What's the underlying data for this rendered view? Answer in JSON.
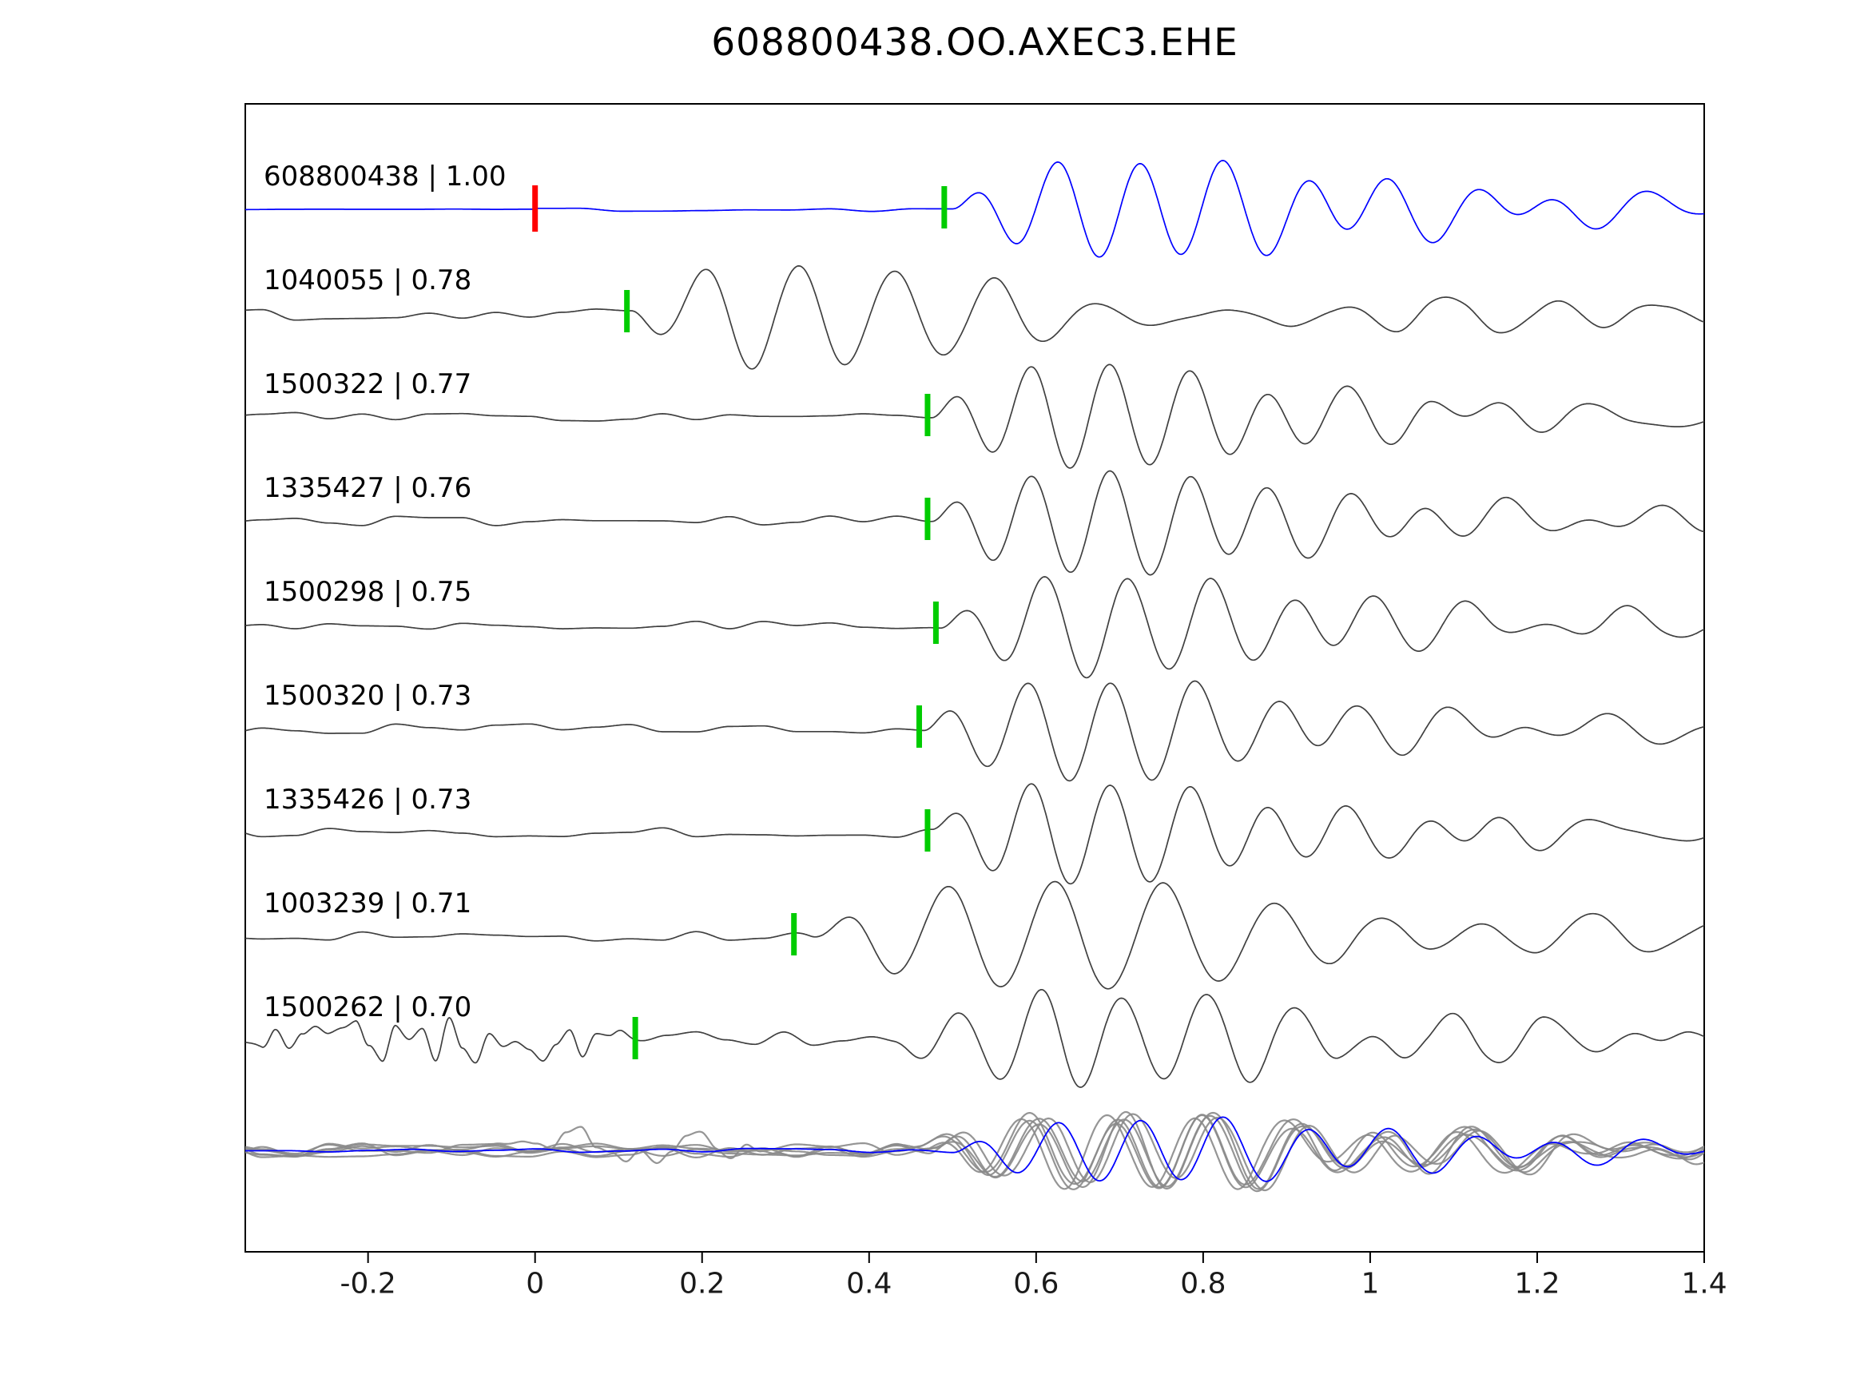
{
  "title": "608800438.OO.AXEC3.EHE",
  "chart_data": {
    "type": "line",
    "title": "608800438.OO.AXEC3.EHE",
    "xlabel": "",
    "ylabel": "",
    "grid": false,
    "legend": "none",
    "xlim": [
      -0.347,
      1.4
    ],
    "x_ticks": [
      -0.2,
      0,
      0.2,
      0.4,
      0.6,
      0.8,
      1,
      1.2,
      1.4
    ],
    "x_tick_labels": [
      "-0.2",
      "0",
      "0.2",
      "0.4",
      "0.6",
      "0.8",
      "1",
      "1.2",
      "1.4"
    ],
    "y_ticks": [],
    "colors": {
      "template_trace": "#0000ff",
      "match_trace": "#404040",
      "pick_marker": "#00cc00",
      "origin_marker": "#ff0000",
      "stack_gray": "#8a8a8a",
      "axis": "#000000",
      "tick_label": "#1a1a1a"
    },
    "traces": [
      {
        "event_id": "608800438",
        "correlation": "1.00",
        "label": "608800438 | 1.00",
        "color": "#0000ff",
        "pick_time": 0.49,
        "origin_marker": 0.0,
        "synth": {
          "seed": 11,
          "noise_amp": 3.5,
          "noise_dt": 0.05,
          "noise_ramp": {
            "t": 0.0,
            "before": 0.12
          },
          "wavelets": [
            {
              "t0": 0.5,
              "period": 0.1,
              "amp": 62,
              "decay": 0.2,
              "phase": 0
            },
            {
              "t0": 0.62,
              "period": 0.18,
              "amp": 13,
              "decay": 0.6,
              "phase": 1.3
            }
          ]
        }
      },
      {
        "event_id": "1040055",
        "correlation": "0.78",
        "label": "1040055 | 0.78",
        "color": "#404040",
        "pick_time": 0.11,
        "synth": {
          "seed": 22,
          "noise_amp": 9,
          "noise_dt": 0.04,
          "wavelets": [
            {
              "t0": 0.115,
              "period": 0.115,
              "amp": 70,
              "decay": 0.16,
              "phase": 3.1416
            },
            {
              "t0": 0.42,
              "period": 0.13,
              "amp": 17,
              "decay": 0.5,
              "phase": 0.6
            }
          ]
        }
      },
      {
        "event_id": "1500322",
        "correlation": "0.77",
        "label": "1500322 | 0.77",
        "color": "#404040",
        "pick_time": 0.47,
        "synth": {
          "seed": 33,
          "noise_amp": 6,
          "noise_dt": 0.04,
          "wavelets": [
            {
              "t0": 0.475,
              "period": 0.095,
              "amp": 64,
              "decay": 0.17,
              "phase": 0
            },
            {
              "t0": 0.62,
              "period": 0.16,
              "amp": 12,
              "decay": 0.6,
              "phase": 0.8
            }
          ]
        }
      },
      {
        "event_id": "1335427",
        "correlation": "0.76",
        "label": "1335427 | 0.76",
        "color": "#404040",
        "pick_time": 0.47,
        "synth": {
          "seed": 44,
          "noise_amp": 6,
          "noise_dt": 0.04,
          "wavelets": [
            {
              "t0": 0.475,
              "period": 0.095,
              "amp": 64,
              "decay": 0.18,
              "phase": 0
            },
            {
              "t0": 0.63,
              "period": 0.17,
              "amp": 11,
              "decay": 0.6,
              "phase": 0.4
            }
          ]
        }
      },
      {
        "event_id": "1500298",
        "correlation": "0.75",
        "label": "1500298 | 0.75",
        "color": "#404040",
        "pick_time": 0.48,
        "synth": {
          "seed": 55,
          "noise_amp": 6,
          "noise_dt": 0.04,
          "wavelets": [
            {
              "t0": 0.485,
              "period": 0.1,
              "amp": 63,
              "decay": 0.18,
              "phase": 0
            },
            {
              "t0": 0.64,
              "period": 0.16,
              "amp": 12,
              "decay": 0.55,
              "phase": 0.9
            }
          ]
        }
      },
      {
        "event_id": "1500320",
        "correlation": "0.73",
        "label": "1500320 | 0.73",
        "color": "#404040",
        "pick_time": 0.46,
        "synth": {
          "seed": 66,
          "noise_amp": 6,
          "noise_dt": 0.04,
          "wavelets": [
            {
              "t0": 0.465,
              "period": 0.1,
              "amp": 64,
              "decay": 0.18,
              "phase": 0
            },
            {
              "t0": 0.61,
              "period": 0.16,
              "amp": 12,
              "decay": 0.6,
              "phase": 0.5
            }
          ]
        }
      },
      {
        "event_id": "1335426",
        "correlation": "0.73",
        "label": "1335426 | 0.73",
        "color": "#404040",
        "pick_time": 0.47,
        "synth": {
          "seed": 77,
          "noise_amp": 6,
          "noise_dt": 0.04,
          "wavelets": [
            {
              "t0": 0.475,
              "period": 0.095,
              "amp": 63,
              "decay": 0.17,
              "phase": 0
            },
            {
              "t0": 0.62,
              "period": 0.16,
              "amp": 11,
              "decay": 0.6,
              "phase": 0.7
            }
          ]
        }
      },
      {
        "event_id": "1003239",
        "correlation": "0.71",
        "label": "1003239 | 0.71",
        "color": "#404040",
        "pick_time": 0.31,
        "synth": {
          "seed": 88,
          "noise_amp": 6,
          "noise_dt": 0.04,
          "wavelets": [
            {
              "t0": 0.33,
              "period": 0.13,
              "amp": 66,
              "decay": 0.24,
              "phase": 0
            },
            {
              "t0": 0.55,
              "period": 0.17,
              "amp": 12,
              "decay": 0.6,
              "phase": 0.5
            }
          ]
        }
      },
      {
        "event_id": "1500262",
        "correlation": "0.70",
        "label": "1500262 | 0.70",
        "color": "#404040",
        "pick_time": 0.12,
        "synth": {
          "seed": 99,
          "noise_amp": 11,
          "noise_dt": 0.035,
          "burst": {
            "amp": 32,
            "dt": 0.016,
            "from": -0.36,
            "to": 0.14
          },
          "wavelets": [
            {
              "t0": 0.43,
              "period": 0.1,
              "amp": 56,
              "decay": 0.2,
              "phase": 3.1416
            },
            {
              "t0": 0.62,
              "period": 0.14,
              "amp": 13,
              "decay": 0.5,
              "phase": 0
            }
          ]
        }
      }
    ],
    "stack": {
      "description": "overlay of aligned match traces (gray) with template (blue)",
      "gray_color": "#8a8a8a",
      "blue_color": "#0000ff",
      "gray_amp": 44,
      "gray_noise": 9,
      "period": 0.105,
      "decay": 0.22,
      "gray": [
        {
          "seed": 101,
          "t0": 0.46,
          "burst": false
        },
        {
          "seed": 102,
          "t0": 0.47,
          "burst": false
        },
        {
          "seed": 103,
          "t0": 0.45,
          "burst": false
        },
        {
          "seed": 104,
          "t0": 0.48,
          "burst": false
        },
        {
          "seed": 105,
          "t0": 0.46,
          "burst": true
        },
        {
          "seed": 106,
          "t0": 0.47,
          "burst": false
        }
      ],
      "blue": {
        "seed": 111,
        "t0": 0.5,
        "amp": 40,
        "noise": 3,
        "period": 0.1,
        "decay": 0.22
      }
    }
  }
}
